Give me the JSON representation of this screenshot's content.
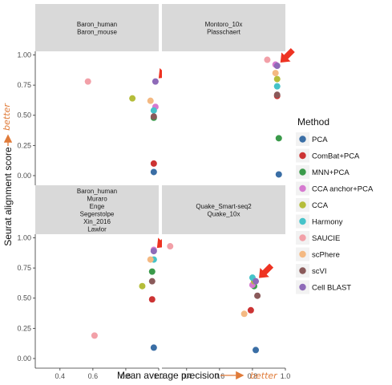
{
  "chart_data": {
    "type": "scatter",
    "xlabel": "Mean average precision",
    "ylabel": "Seurat alignment score",
    "x_better_label": "better",
    "y_better_label": "better",
    "xlim": [
      0.25,
      1.0
    ],
    "ylim": [
      -0.08,
      1.03
    ],
    "x_ticks": [
      "0.4",
      "0.6",
      "0.8",
      "1.0"
    ],
    "y_ticks": [
      "0.00",
      "0.25",
      "0.50",
      "0.75",
      "1.00"
    ],
    "legend": {
      "title": "Method",
      "placement": "right",
      "entries": [
        {
          "name": "PCA",
          "color": "#3a6ea5"
        },
        {
          "name": "ComBat+PCA",
          "color": "#cc3333"
        },
        {
          "name": "MNN+PCA",
          "color": "#3a9a4a"
        },
        {
          "name": "CCA anchor+PCA",
          "color": "#d67ad0"
        },
        {
          "name": "CCA",
          "color": "#b5bd3a"
        },
        {
          "name": "Harmony",
          "color": "#45c3c9"
        },
        {
          "name": "SAUCIE",
          "color": "#f2a0a8"
        },
        {
          "name": "scPhere",
          "color": "#f4b982"
        },
        {
          "name": "scVI",
          "color": "#8a5a5a"
        },
        {
          "name": "Cell BLAST",
          "color": "#8e6ab8"
        }
      ]
    },
    "panels": [
      {
        "strip": [
          "Baron_human",
          "Baron_mouse"
        ],
        "highlight": "Cell BLAST",
        "points": [
          {
            "method": "PCA",
            "x": 0.97,
            "y": 0.03
          },
          {
            "method": "ComBat+PCA",
            "x": 0.97,
            "y": 0.1
          },
          {
            "method": "MNN+PCA",
            "x": 0.97,
            "y": 0.48
          },
          {
            "method": "CCA anchor+PCA",
            "x": 0.98,
            "y": 0.57
          },
          {
            "method": "CCA",
            "x": 0.84,
            "y": 0.64
          },
          {
            "method": "Harmony",
            "x": 0.97,
            "y": 0.54
          },
          {
            "method": "SAUCIE",
            "x": 0.57,
            "y": 0.78
          },
          {
            "method": "scPhere",
            "x": 0.95,
            "y": 0.62
          },
          {
            "method": "scVI",
            "x": 0.97,
            "y": 0.49
          },
          {
            "method": "Cell BLAST",
            "x": 0.98,
            "y": 0.78
          }
        ]
      },
      {
        "strip": [
          "Montoro_10x",
          "Plasschaert"
        ],
        "highlight": "Cell BLAST",
        "points": [
          {
            "method": "PCA",
            "x": 0.96,
            "y": 0.01
          },
          {
            "method": "ComBat+PCA",
            "x": 0.95,
            "y": 0.66
          },
          {
            "method": "MNN+PCA",
            "x": 0.96,
            "y": 0.31
          },
          {
            "method": "CCA anchor+PCA",
            "x": 0.94,
            "y": 0.92
          },
          {
            "method": "CCA",
            "x": 0.95,
            "y": 0.8
          },
          {
            "method": "Harmony",
            "x": 0.95,
            "y": 0.74
          },
          {
            "method": "SAUCIE",
            "x": 0.89,
            "y": 0.96
          },
          {
            "method": "scPhere",
            "x": 0.94,
            "y": 0.85
          },
          {
            "method": "scVI",
            "x": 0.95,
            "y": 0.67
          },
          {
            "method": "Cell BLAST",
            "x": 0.95,
            "y": 0.91
          }
        ]
      },
      {
        "strip": [
          "Baron_human",
          "Muraro",
          "Enge",
          "Segerstolpe",
          "Xin_2016",
          "Lawlor"
        ],
        "highlight": "Cell BLAST",
        "points": [
          {
            "method": "PCA",
            "x": 0.97,
            "y": 0.09
          },
          {
            "method": "ComBat+PCA",
            "x": 0.96,
            "y": 0.49
          },
          {
            "method": "MNN+PCA",
            "x": 0.96,
            "y": 0.72
          },
          {
            "method": "CCA anchor+PCA",
            "x": 0.97,
            "y": 0.9
          },
          {
            "method": "CCA",
            "x": 0.9,
            "y": 0.6
          },
          {
            "method": "Harmony",
            "x": 0.97,
            "y": 0.82
          },
          {
            "method": "SAUCIE",
            "x": 0.61,
            "y": 0.19
          },
          {
            "method": "scPhere",
            "x": 0.95,
            "y": 0.82
          },
          {
            "method": "scVI",
            "x": 0.96,
            "y": 0.64
          },
          {
            "method": "Cell BLAST",
            "x": 0.97,
            "y": 0.89
          }
        ]
      },
      {
        "strip": [
          "Quake_Smart-seq2",
          "Quake_10x"
        ],
        "highlight": "Cell BLAST",
        "points": [
          {
            "method": "PCA",
            "x": 0.82,
            "y": 0.07
          },
          {
            "method": "ComBat+PCA",
            "x": 0.79,
            "y": 0.4
          },
          {
            "method": "MNN+PCA",
            "x": 0.81,
            "y": 0.6
          },
          {
            "method": "CCA anchor+PCA",
            "x": 0.8,
            "y": 0.61
          },
          {
            "method": "CCA",
            "x": 0.81,
            "y": 0.64
          },
          {
            "method": "Harmony",
            "x": 0.8,
            "y": 0.67
          },
          {
            "method": "SAUCIE",
            "x": 0.3,
            "y": 0.93
          },
          {
            "method": "scPhere",
            "x": 0.75,
            "y": 0.37
          },
          {
            "method": "scVI",
            "x": 0.83,
            "y": 0.52
          },
          {
            "method": "Cell BLAST",
            "x": 0.82,
            "y": 0.64
          }
        ]
      }
    ]
  }
}
